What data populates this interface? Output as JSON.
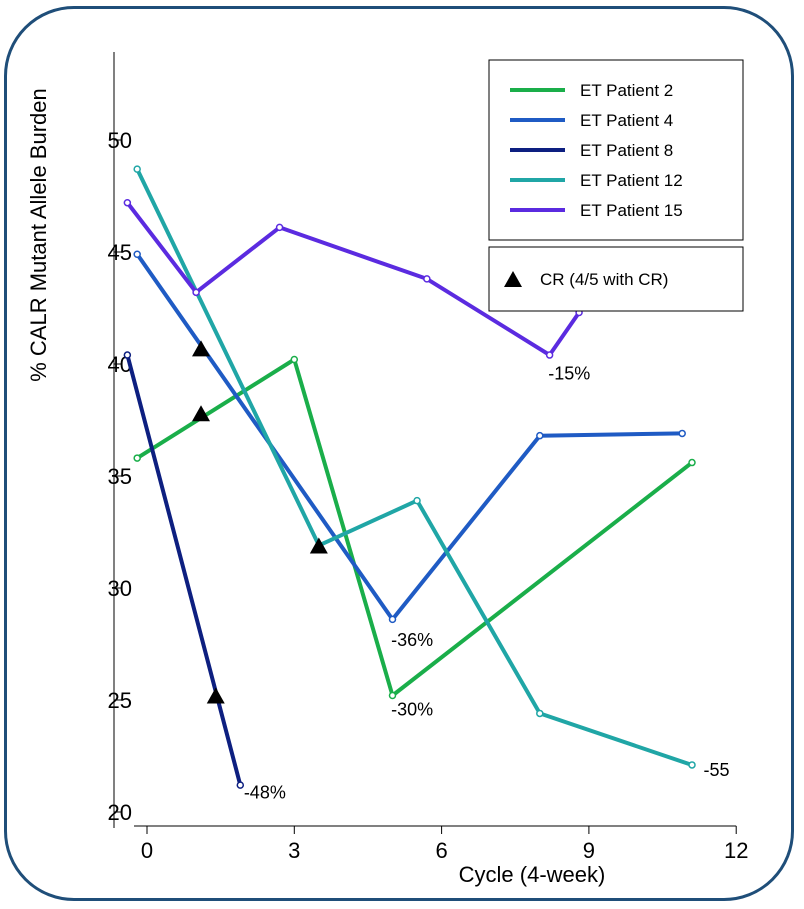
{
  "chart_data": {
    "type": "line",
    "xlabel": "Cycle (4-week)",
    "ylabel": "% CALR Mutant Allele Burden",
    "xlim": [
      -0.3,
      12
    ],
    "ylim": [
      20,
      54
    ],
    "xticks": [
      0,
      3,
      6,
      9,
      12
    ],
    "yticks": [
      20,
      25,
      30,
      35,
      40,
      45,
      50
    ],
    "grid": false,
    "legend_position": "top-right",
    "series": [
      {
        "name": "ET Patient 2",
        "color": "#1aae4a",
        "x": [
          -0.2,
          3.0,
          5.0,
          11.1
        ],
        "y": [
          35.8,
          40.2,
          25.2,
          35.6
        ]
      },
      {
        "name": "ET Patient 4",
        "color": "#1f5bc4",
        "x": [
          -0.2,
          5.0,
          8.0,
          10.9
        ],
        "y": [
          44.9,
          28.6,
          36.8,
          36.9
        ]
      },
      {
        "name": "ET Patient 8",
        "color": "#0d1f80",
        "x": [
          -0.4,
          1.9
        ],
        "y": [
          40.4,
          21.2
        ]
      },
      {
        "name": "ET Patient 12",
        "color": "#20a6a6",
        "x": [
          -0.2,
          3.5,
          5.5,
          8.0,
          11.1
        ],
        "y": [
          48.7,
          31.9,
          33.9,
          24.4,
          22.1
        ]
      },
      {
        "name": "ET Patient 15",
        "color": "#5b2be0",
        "x": [
          -0.4,
          1.0,
          2.7,
          5.7,
          8.2,
          8.8
        ],
        "y": [
          47.2,
          43.2,
          46.1,
          43.8,
          40.4,
          42.3
        ]
      }
    ],
    "cr_marker_label": "CR (4/5 with CR)",
    "cr_points": [
      {
        "x": 1.1,
        "y": 40.7
      },
      {
        "x": 1.1,
        "y": 37.8
      },
      {
        "x": 3.5,
        "y": 31.9
      },
      {
        "x": 1.4,
        "y": 25.2
      }
    ],
    "annotations": [
      {
        "text": "-15%",
        "x": 8.6,
        "y": 39.3
      },
      {
        "text": "-36%",
        "x": 5.4,
        "y": 27.4
      },
      {
        "text": "-30%",
        "x": 5.4,
        "y": 24.3
      },
      {
        "text": "-48%",
        "x": 2.4,
        "y": 20.6
      },
      {
        "text": "-55",
        "x": 11.6,
        "y": 21.6
      }
    ]
  }
}
